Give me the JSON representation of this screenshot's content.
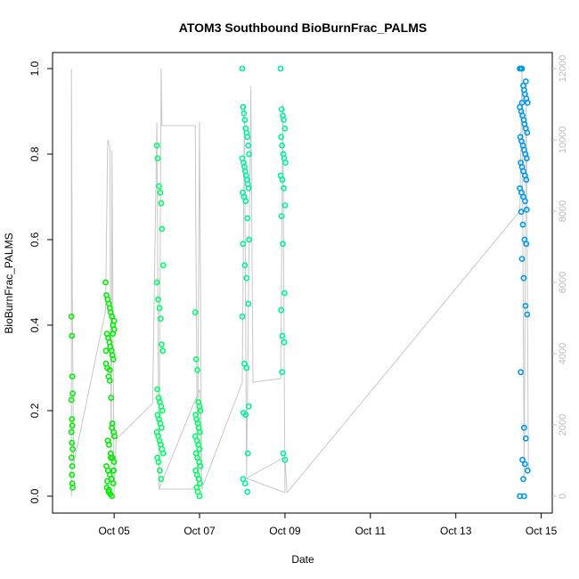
{
  "chart_data": {
    "type": "scatter",
    "title": "ATOM3 Southbound BioBurnFrac_PALMS",
    "xlabel": "Date",
    "ylabel": "BioBurnFrac_PALMS",
    "xlim": [
      3.85,
      15.05
    ],
    "ylim": [
      0,
      1.0
    ],
    "y2lim": [
      0,
      12000
    ],
    "x_ticks": [
      5,
      7,
      9,
      11,
      13,
      15
    ],
    "x_tick_labels": [
      "Oct 05",
      "Oct 07",
      "Oct 09",
      "Oct 11",
      "Oct 13",
      "Oct 15"
    ],
    "y_ticks": [
      0.0,
      0.2,
      0.4,
      0.6,
      0.8,
      1.0
    ],
    "y_tick_labels": [
      "0.0",
      "0.2",
      "0.4",
      "0.6",
      "0.8",
      "1.0"
    ],
    "y2_ticks": [
      0,
      2000,
      4000,
      6000,
      8000,
      10000,
      12000
    ],
    "y2_tick_labels": [
      "0",
      "2000",
      "4000",
      "6000",
      "8000",
      "10000",
      "12000"
    ],
    "grid": false,
    "colors": {
      "flight1": "#00ee00",
      "flight2": "#00ff66",
      "flight3": "#00f0a0",
      "flight4": "#0099e6",
      "altitude_line": "#c8c8c8"
    },
    "altitude_path": [
      [
        4.0,
        0
      ],
      [
        4.0,
        12000
      ],
      [
        4.02,
        5500
      ],
      [
        4.05,
        900
      ],
      [
        4.8,
        5200
      ],
      [
        4.85,
        10000
      ],
      [
        4.9,
        9800
      ],
      [
        4.93,
        300
      ],
      [
        4.95,
        9700
      ],
      [
        5.0,
        100
      ],
      [
        5.05,
        1600
      ],
      [
        5.9,
        2600
      ],
      [
        6.0,
        10500
      ],
      [
        6.05,
        200
      ],
      [
        6.1,
        12000
      ],
      [
        6.12,
        10400
      ],
      [
        6.9,
        10400
      ],
      [
        6.95,
        300
      ],
      [
        7.0,
        10500
      ],
      [
        7.05,
        200
      ],
      [
        6.05,
        200
      ],
      [
        7.0,
        3000
      ],
      [
        7.05,
        200
      ],
      [
        8.0,
        3200
      ],
      [
        8.05,
        11000
      ],
      [
        8.1,
        500
      ],
      [
        8.2,
        11500
      ],
      [
        8.25,
        3200
      ],
      [
        8.9,
        3300
      ],
      [
        8.95,
        11000
      ],
      [
        9.0,
        100
      ],
      [
        8.1,
        500
      ],
      [
        9.0,
        1100
      ],
      [
        9.05,
        100
      ],
      [
        14.5,
        8000
      ],
      [
        14.55,
        12000
      ],
      [
        14.6,
        500
      ],
      [
        14.65,
        11500
      ],
      [
        14.7,
        800
      ]
    ],
    "series": [
      {
        "color": "#00ee00",
        "x": [
          4.0,
          4.01,
          4.02,
          4.03,
          4.0,
          4.01,
          4.02,
          4.0,
          4.01,
          4.03,
          4.0,
          4.02,
          4.01,
          4.02,
          4.03,
          4.8,
          4.82,
          4.85,
          4.88,
          4.9,
          4.92,
          4.95,
          4.97,
          5.0,
          4.83,
          4.86,
          4.89,
          4.91,
          4.94,
          4.96,
          4.98,
          4.81,
          4.84,
          4.87,
          4.9,
          4.93,
          4.95,
          4.99,
          5.01,
          4.85,
          4.88,
          4.92,
          4.96,
          5.0,
          4.82,
          4.86,
          4.9,
          4.94,
          4.98,
          4.83,
          4.87,
          4.91,
          4.95,
          4.99,
          4.84,
          4.88,
          4.92,
          4.96,
          5.0,
          4.81,
          4.9,
          4.97
        ],
        "y": [
          0.42,
          0.375,
          0.28,
          0.24,
          0.225,
          0.18,
          0.165,
          0.15,
          0.125,
          0.11,
          0.09,
          0.07,
          0.05,
          0.03,
          0.02,
          0.5,
          0.47,
          0.46,
          0.45,
          0.44,
          0.43,
          0.42,
          0.4,
          0.39,
          0.38,
          0.37,
          0.36,
          0.35,
          0.34,
          0.33,
          0.32,
          0.31,
          0.3,
          0.28,
          0.27,
          0.23,
          0.16,
          0.15,
          0.14,
          0.13,
          0.12,
          0.1,
          0.09,
          0.08,
          0.07,
          0.06,
          0.05,
          0.04,
          0.03,
          0.02,
          0.01,
          0.005,
          0.0,
          0.06,
          0.035,
          0.015,
          0.09,
          0.17,
          0.41,
          0.34,
          0.295,
          0.38
        ]
      },
      {
        "color": "#00ff66",
        "x": [
          6.0,
          6.02,
          6.05,
          6.08,
          6.1,
          6.12,
          6.15,
          6.0,
          6.03,
          6.06,
          6.09,
          6.11,
          6.14,
          6.01,
          6.04,
          6.07,
          6.1,
          6.13,
          6.02,
          6.05,
          6.08,
          6.11,
          6.0,
          6.03,
          6.06,
          6.09,
          6.12,
          6.15,
          6.01,
          6.04,
          6.07,
          6.1,
          6.9,
          6.92,
          6.95,
          6.97,
          7.0,
          7.02,
          6.91,
          6.93,
          6.96,
          6.98,
          7.01,
          6.9,
          6.94,
          6.97,
          7.0,
          6.92,
          6.95,
          6.99,
          7.02,
          6.91,
          6.94,
          6.98,
          7.01,
          6.93,
          6.96,
          7.0
        ],
        "y": [
          0.82,
          0.79,
          0.725,
          0.71,
          0.685,
          0.625,
          0.54,
          0.5,
          0.46,
          0.44,
          0.415,
          0.355,
          0.34,
          0.25,
          0.23,
          0.22,
          0.21,
          0.2,
          0.19,
          0.18,
          0.17,
          0.16,
          0.15,
          0.14,
          0.13,
          0.12,
          0.11,
          0.1,
          0.09,
          0.08,
          0.06,
          0.04,
          0.43,
          0.32,
          0.295,
          0.22,
          0.21,
          0.2,
          0.19,
          0.18,
          0.17,
          0.16,
          0.15,
          0.14,
          0.13,
          0.12,
          0.11,
          0.1,
          0.09,
          0.08,
          0.07,
          0.06,
          0.05,
          0.04,
          0.03,
          0.02,
          0.01,
          0.0
        ]
      },
      {
        "color": "#00f0a0",
        "x": [
          8.0,
          8.02,
          8.04,
          8.06,
          8.08,
          8.1,
          8.12,
          8.14,
          8.16,
          8.0,
          8.03,
          8.05,
          8.07,
          8.09,
          8.11,
          8.13,
          8.15,
          8.01,
          8.04,
          8.08,
          8.12,
          8.16,
          8.02,
          8.06,
          8.1,
          8.14,
          8.0,
          8.05,
          8.1,
          8.15,
          8.03,
          8.08,
          8.13,
          8.02,
          8.07,
          8.12,
          8.9,
          8.92,
          8.95,
          8.97,
          9.0,
          8.91,
          8.93,
          8.96,
          8.98,
          9.01,
          8.9,
          8.94,
          8.97,
          9.0,
          8.92,
          8.95,
          8.99,
          8.91,
          8.94,
          8.98,
          8.93,
          8.96,
          9.0
        ],
        "y": [
          1.0,
          0.91,
          0.895,
          0.88,
          0.86,
          0.85,
          0.84,
          0.82,
          0.8,
          0.79,
          0.78,
          0.77,
          0.76,
          0.75,
          0.74,
          0.73,
          0.72,
          0.71,
          0.7,
          0.69,
          0.65,
          0.6,
          0.59,
          0.54,
          0.51,
          0.45,
          0.42,
          0.31,
          0.3,
          0.21,
          0.195,
          0.19,
          0.1,
          0.04,
          0.03,
          0.01,
          1.0,
          0.905,
          0.89,
          0.88,
          0.86,
          0.84,
          0.82,
          0.8,
          0.79,
          0.78,
          0.75,
          0.74,
          0.72,
          0.68,
          0.655,
          0.59,
          0.475,
          0.435,
          0.375,
          0.36,
          0.29,
          0.1,
          0.085
        ]
      },
      {
        "color": "#0099e6",
        "x": [
          14.5,
          14.52,
          14.55,
          14.58,
          14.6,
          14.62,
          14.65,
          14.68,
          14.5,
          14.53,
          14.56,
          14.59,
          14.61,
          14.64,
          14.67,
          14.51,
          14.54,
          14.57,
          14.6,
          14.63,
          14.66,
          14.52,
          14.55,
          14.58,
          14.62,
          14.65,
          14.5,
          14.54,
          14.58,
          14.62,
          14.66,
          14.53,
          14.57,
          14.61,
          14.65,
          14.55,
          14.59,
          14.63,
          14.67,
          14.52,
          14.6,
          14.64,
          14.56,
          14.62,
          14.68,
          14.58,
          14.5,
          14.6,
          14.64,
          14.55
        ],
        "y": [
          1.0,
          1.0,
          1.0,
          0.96,
          0.95,
          0.94,
          0.93,
          0.92,
          0.91,
          0.9,
          0.89,
          0.88,
          0.87,
          0.86,
          0.85,
          0.84,
          0.83,
          0.82,
          0.81,
          0.8,
          0.79,
          0.78,
          0.77,
          0.76,
          0.75,
          0.74,
          0.72,
          0.71,
          0.7,
          0.69,
          0.67,
          0.665,
          0.635,
          0.6,
          0.59,
          0.555,
          0.51,
          0.445,
          0.425,
          0.29,
          0.16,
          0.135,
          0.085,
          0.075,
          0.06,
          0.04,
          0.0,
          0.0,
          0.97,
          0.92
        ]
      }
    ]
  }
}
